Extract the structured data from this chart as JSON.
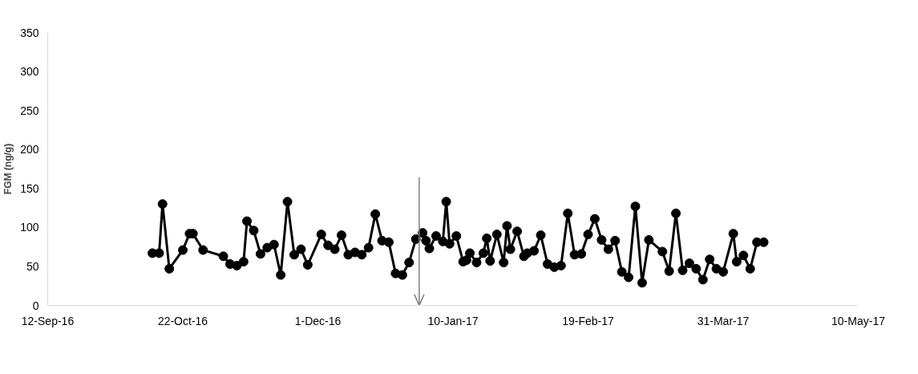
{
  "chart_data": {
    "type": "line",
    "ylabel": "FGM (ng/g)",
    "x": [
      "2016-10-13",
      "2016-10-15",
      "2016-10-16",
      "2016-10-18",
      "2016-10-22",
      "2016-10-24",
      "2016-10-25",
      "2016-10-28",
      "2016-11-03",
      "2016-11-05",
      "2016-11-07",
      "2016-11-09",
      "2016-11-10",
      "2016-11-12",
      "2016-11-14",
      "2016-11-16",
      "2016-11-18",
      "2016-11-20",
      "2016-11-22",
      "2016-11-24",
      "2016-11-26",
      "2016-11-28",
      "2016-12-02",
      "2016-12-04",
      "2016-12-06",
      "2016-12-08",
      "2016-12-10",
      "2016-12-12",
      "2016-12-14",
      "2016-12-16",
      "2016-12-18",
      "2016-12-20",
      "2016-12-22",
      "2016-12-24",
      "2016-12-26",
      "2016-12-28",
      "2016-12-30",
      "2017-01-01",
      "2017-01-02",
      "2017-01-03",
      "2017-01-05",
      "2017-01-07",
      "2017-01-08",
      "2017-01-09",
      "2017-01-11",
      "2017-01-13",
      "2017-01-14",
      "2017-01-15",
      "2017-01-17",
      "2017-01-19",
      "2017-01-20",
      "2017-01-21",
      "2017-01-23",
      "2017-01-25",
      "2017-01-26",
      "2017-01-27",
      "2017-01-29",
      "2017-01-31",
      "2017-02-01",
      "2017-02-03",
      "2017-02-05",
      "2017-02-07",
      "2017-02-09",
      "2017-02-11",
      "2017-02-13",
      "2017-02-15",
      "2017-02-17",
      "2017-02-19",
      "2017-02-21",
      "2017-02-23",
      "2017-02-25",
      "2017-02-27",
      "2017-03-01",
      "2017-03-03",
      "2017-03-05",
      "2017-03-07",
      "2017-03-09",
      "2017-03-13",
      "2017-03-15",
      "2017-03-17",
      "2017-03-19",
      "2017-03-21",
      "2017-03-23",
      "2017-03-25",
      "2017-03-27",
      "2017-03-29",
      "2017-03-31",
      "2017-04-03",
      "2017-04-04",
      "2017-04-06",
      "2017-04-08",
      "2017-04-10",
      "2017-04-12"
    ],
    "series": [
      {
        "color": "#000000",
        "values": [
          67,
          67,
          130,
          47,
          71,
          92,
          92,
          71,
          63,
          53,
          51,
          56,
          108,
          96,
          66,
          74,
          78,
          39,
          133,
          65,
          72,
          52,
          91,
          77,
          72,
          90,
          65,
          68,
          65,
          74,
          117,
          83,
          81,
          41,
          39,
          55,
          85,
          93,
          83,
          73,
          89,
          82,
          133,
          79,
          89,
          56,
          58,
          67,
          55,
          67,
          86,
          57,
          91,
          55,
          102,
          72,
          95,
          63,
          67,
          70,
          90,
          53,
          49,
          51,
          118,
          65,
          66,
          91,
          111,
          84,
          72,
          83,
          43,
          36,
          127,
          29,
          84,
          69,
          44,
          118,
          45,
          54,
          47,
          33,
          59,
          47,
          43,
          92,
          56,
          64,
          47,
          81,
          81
        ]
      }
    ],
    "xlim": [
      "2016-09-12",
      "2017-05-10"
    ],
    "xticks": [
      {
        "value": "2016-09-12",
        "label": "12-Sep-16"
      },
      {
        "value": "2016-10-22",
        "label": "22-Oct-16"
      },
      {
        "value": "2016-12-01",
        "label": "1-Dec-16"
      },
      {
        "value": "2017-01-10",
        "label": "10-Jan-17"
      },
      {
        "value": "2017-02-19",
        "label": "19-Feb-17"
      },
      {
        "value": "2017-03-31",
        "label": "31-Mar-17"
      },
      {
        "value": "2017-05-10",
        "label": "10-May-17"
      }
    ],
    "ylim": [
      0,
      350
    ],
    "yticks": [
      0,
      50,
      100,
      150,
      200,
      250,
      300,
      350
    ],
    "grid": false,
    "marker": "circle",
    "line_style": "solid",
    "ref_lines": [
      {
        "axis": "x",
        "value": "2016-12-31",
        "color": "#7f7f7f"
      }
    ]
  }
}
